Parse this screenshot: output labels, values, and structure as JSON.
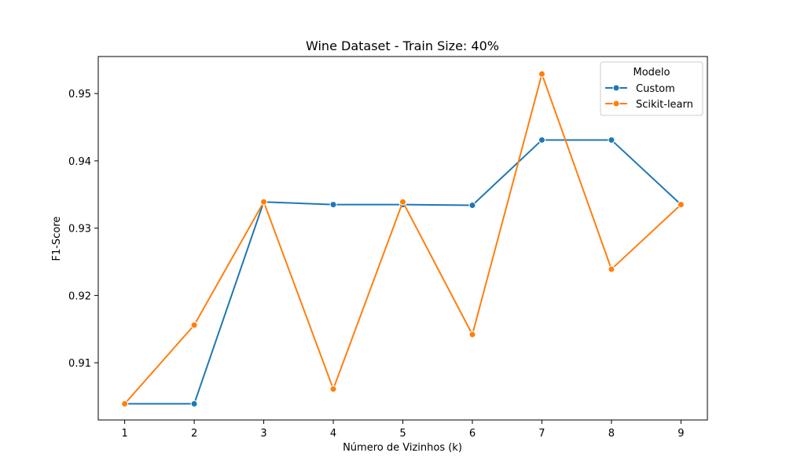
{
  "chart_data": {
    "type": "line",
    "title": "Wine Dataset - Train Size: 40%",
    "xlabel": "Número de Vizinhos (k)",
    "ylabel": "F1-Score",
    "x": [
      1,
      2,
      3,
      4,
      5,
      6,
      7,
      8,
      9
    ],
    "xticks": [
      "1",
      "2",
      "3",
      "4",
      "5",
      "6",
      "7",
      "8",
      "9"
    ],
    "yticks": [
      "0.91",
      "0.92",
      "0.93",
      "0.94",
      "0.95"
    ],
    "ytick_values": [
      0.91,
      0.92,
      0.93,
      0.94,
      0.95
    ],
    "xlim": [
      0.62,
      9.38
    ],
    "ylim": [
      0.9015,
      0.9555
    ],
    "grid": false,
    "legend": {
      "title": "Modelo",
      "position": "top-right"
    },
    "series": [
      {
        "name": "Custom",
        "color": "#1f77b4",
        "values": [
          0.9039,
          0.9039,
          0.9339,
          0.9335,
          0.9335,
          0.9334,
          0.9431,
          0.9431,
          0.9335
        ]
      },
      {
        "name": "Scikit-learn",
        "color": "#ff7f0e",
        "values": [
          0.9039,
          0.9156,
          0.9339,
          0.9061,
          0.9339,
          0.9142,
          0.9529,
          0.9239,
          0.9335
        ]
      }
    ]
  }
}
